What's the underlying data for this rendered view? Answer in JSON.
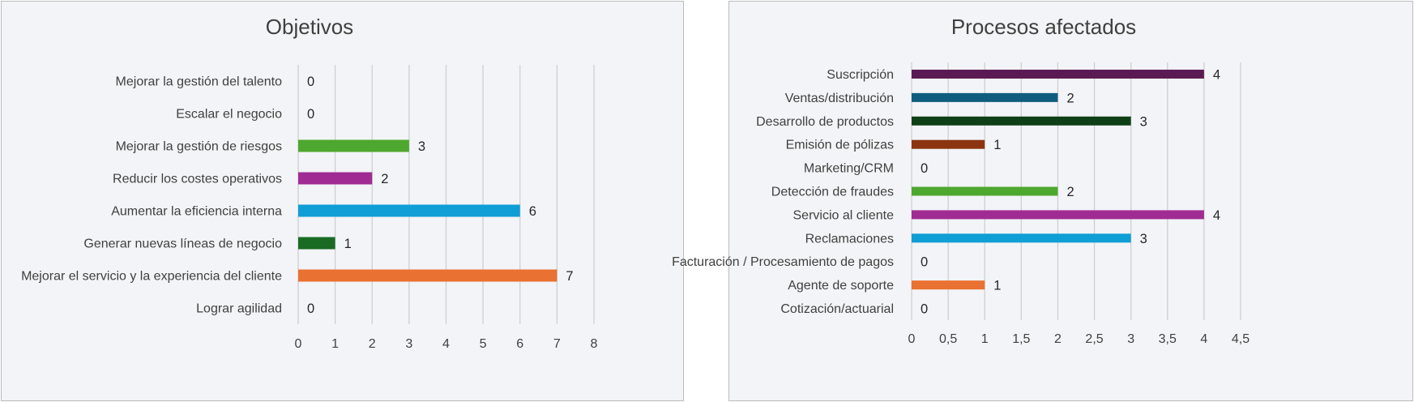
{
  "chart_data": [
    {
      "type": "bar",
      "orientation": "horizontal",
      "title": "Objetivos",
      "categories": [
        "Mejorar la gestión del talento",
        "Escalar el negocio",
        "Mejorar la gestión de riesgos",
        "Reducir los costes operativos",
        "Aumentar la eficiencia interna",
        "Generar nuevas líneas de negocio",
        "Mejorar el servicio y la experiencia del cliente",
        "Lograr agilidad"
      ],
      "values": [
        0,
        0,
        3,
        2,
        6,
        1,
        7,
        0
      ],
      "data_labels": [
        "0",
        "0",
        "3",
        "2",
        "6",
        "1",
        "7",
        "0"
      ],
      "colors": [
        "#7f7f7f",
        "#7f7f7f",
        "#4ea72e",
        "#a02b93",
        "#0f9ed5",
        "#196b24",
        "#e97132",
        "#7f7f7f"
      ],
      "xlim": [
        0,
        8
      ],
      "xticks": [
        "0",
        "1",
        "2",
        "3",
        "4",
        "5",
        "6",
        "7",
        "8"
      ],
      "grid": "vertical",
      "legend": "none"
    },
    {
      "type": "bar",
      "orientation": "horizontal",
      "title": "Procesos afectados",
      "categories": [
        "Suscripción",
        "Ventas/distribución",
        "Desarrollo de productos",
        "Emisión de pólizas",
        "Marketing/CRM",
        "Detección de fraudes",
        "Servicio al cliente",
        "Reclamaciones",
        "Facturación / Procesamiento de pagos",
        "Agente de soporte",
        "Cotización/actuarial"
      ],
      "values": [
        4,
        2,
        3,
        1,
        0,
        2,
        4,
        3,
        0,
        1,
        0
      ],
      "data_labels": [
        "4",
        "2",
        "3",
        "1",
        "0",
        "2",
        "4",
        "3",
        "0",
        "1",
        "0"
      ],
      "colors": [
        "#5c1a55",
        "#0e5d7e",
        "#0e3f16",
        "#8b3410",
        "#7f7f7f",
        "#4ea72e",
        "#a02b93",
        "#0f9ed5",
        "#7f7f7f",
        "#e97132",
        "#7f7f7f"
      ],
      "xlim": [
        0,
        4.5
      ],
      "xticks": [
        "0",
        "0,5",
        "1",
        "1,5",
        "2",
        "2,5",
        "3",
        "3,5",
        "4",
        "4,5"
      ],
      "grid": "vertical",
      "legend": "none"
    }
  ]
}
